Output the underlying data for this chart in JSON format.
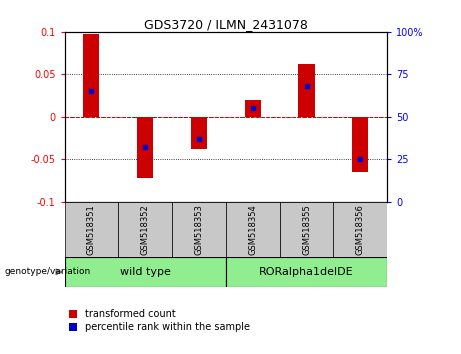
{
  "title": "GDS3720 / ILMN_2431078",
  "samples": [
    "GSM518351",
    "GSM518352",
    "GSM518353",
    "GSM518354",
    "GSM518355",
    "GSM518356"
  ],
  "transformed_counts": [
    0.097,
    -0.072,
    -0.038,
    0.02,
    0.062,
    -0.065
  ],
  "percentile_ranks": [
    65,
    32,
    37,
    55,
    68,
    25
  ],
  "group_wt_label": "wild type",
  "group_ror_label": "RORalpha1delDE",
  "group_color": "#90EE90",
  "ylim_left": [
    -0.1,
    0.1
  ],
  "ylim_right": [
    0,
    100
  ],
  "yticks_left": [
    -0.1,
    -0.05,
    0,
    0.05,
    0.1
  ],
  "yticks_right": [
    0,
    25,
    50,
    75,
    100
  ],
  "bar_color": "#CC0000",
  "marker_color": "#0000CC",
  "zero_line_color": "#CC0000",
  "background_color": "#FFFFFF",
  "label_transformed": "transformed count",
  "label_percentile": "percentile rank within the sample",
  "genotype_label": "genotype/variation",
  "bar_width": 0.3,
  "title_fontsize": 9,
  "tick_fontsize": 7,
  "sample_fontsize": 6,
  "group_fontsize": 8,
  "legend_fontsize": 7
}
